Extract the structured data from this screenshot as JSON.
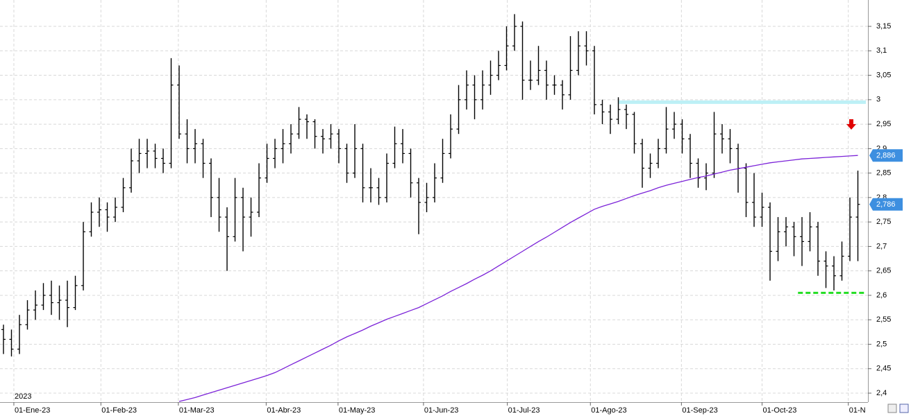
{
  "chart_data": {
    "type": "ohlc",
    "year_label": "2023",
    "ohlc": {
      "color": "#000000",
      "open": [
        2.53,
        2.51,
        2.49,
        2.54,
        2.57,
        2.58,
        2.6,
        2.585,
        2.59,
        2.575,
        2.62,
        2.73,
        2.77,
        2.775,
        2.76,
        2.78,
        2.82,
        2.875,
        2.89,
        2.895,
        2.88,
        2.87,
        3.03,
        2.93,
        2.9,
        2.91,
        2.87,
        2.8,
        2.76,
        2.72,
        2.8,
        2.76,
        2.77,
        2.84,
        2.88,
        2.9,
        2.91,
        2.93,
        2.96,
        2.955,
        2.925,
        2.92,
        2.93,
        2.9,
        2.85,
        2.9,
        2.82,
        2.82,
        2.8,
        2.87,
        2.91,
        2.89,
        2.83,
        2.79,
        2.8,
        2.84,
        2.89,
        2.94,
        3.0,
        3.03,
        3.0,
        3.03,
        3.05,
        3.07,
        3.11,
        3.15,
        3.04,
        3.04,
        3.06,
        3.03,
        3.03,
        3.01,
        3.06,
        3.11,
        3.1,
        2.99,
        2.975,
        2.96,
        2.98,
        2.97,
        2.91,
        2.86,
        2.87,
        2.9,
        2.94,
        2.95,
        2.92,
        2.87,
        2.84,
        2.85,
        2.93,
        2.92,
        2.9,
        2.86,
        2.79,
        2.76,
        2.78,
        2.69,
        2.73,
        2.74,
        2.72,
        2.71,
        2.74,
        2.67,
        2.66,
        2.64,
        2.68,
        2.76
      ],
      "high": [
        2.54,
        2.53,
        2.56,
        2.59,
        2.61,
        2.625,
        2.63,
        2.62,
        2.63,
        2.64,
        2.75,
        2.79,
        2.8,
        2.79,
        2.8,
        2.84,
        2.9,
        2.92,
        2.92,
        2.91,
        2.9,
        3.085,
        3.07,
        2.96,
        2.94,
        2.92,
        2.88,
        2.84,
        2.78,
        2.84,
        2.82,
        2.8,
        2.87,
        2.91,
        2.92,
        2.94,
        2.95,
        2.985,
        2.97,
        2.96,
        2.94,
        2.95,
        2.94,
        2.91,
        2.95,
        2.91,
        2.86,
        2.84,
        2.89,
        2.945,
        2.94,
        2.9,
        2.84,
        2.83,
        2.87,
        2.92,
        2.97,
        3.03,
        3.06,
        3.05,
        3.06,
        3.08,
        3.1,
        3.15,
        3.175,
        3.16,
        3.08,
        3.11,
        3.08,
        3.05,
        3.04,
        3.13,
        3.14,
        3.14,
        3.11,
        3.0,
        2.99,
        3.005,
        2.99,
        2.975,
        2.92,
        2.89,
        2.92,
        2.985,
        2.975,
        2.96,
        2.93,
        2.88,
        2.87,
        2.975,
        2.95,
        2.94,
        2.91,
        2.87,
        2.85,
        2.81,
        2.79,
        2.76,
        2.76,
        2.75,
        2.76,
        2.77,
        2.75,
        2.69,
        2.68,
        2.71,
        2.8,
        2.855
      ],
      "low": [
        2.48,
        2.475,
        2.48,
        2.53,
        2.55,
        2.57,
        2.56,
        2.55,
        2.535,
        2.57,
        2.61,
        2.72,
        2.74,
        2.73,
        2.75,
        2.77,
        2.81,
        2.85,
        2.86,
        2.86,
        2.85,
        2.86,
        2.92,
        2.87,
        2.87,
        2.84,
        2.76,
        2.73,
        2.65,
        2.71,
        2.69,
        2.72,
        2.76,
        2.83,
        2.86,
        2.87,
        2.89,
        2.92,
        2.92,
        2.9,
        2.89,
        2.9,
        2.87,
        2.83,
        2.84,
        2.79,
        2.79,
        2.785,
        2.79,
        2.86,
        2.87,
        2.8,
        2.725,
        2.77,
        2.79,
        2.83,
        2.88,
        2.93,
        2.98,
        2.96,
        2.98,
        3.01,
        3.04,
        3.06,
        3.1,
        3.0,
        3.02,
        3.03,
        3.0,
        3.01,
        2.98,
        3.0,
        3.05,
        3.07,
        2.97,
        2.95,
        2.93,
        2.95,
        2.94,
        2.89,
        2.82,
        2.84,
        2.86,
        2.89,
        2.92,
        2.89,
        2.84,
        2.82,
        2.815,
        2.84,
        2.89,
        2.87,
        2.81,
        2.76,
        2.74,
        2.74,
        2.63,
        2.67,
        2.7,
        2.68,
        2.66,
        2.69,
        2.64,
        2.615,
        2.61,
        2.63,
        2.67,
        2.67
      ],
      "close": [
        2.51,
        2.49,
        2.54,
        2.57,
        2.58,
        2.6,
        2.585,
        2.59,
        2.575,
        2.62,
        2.73,
        2.77,
        2.775,
        2.76,
        2.78,
        2.82,
        2.875,
        2.89,
        2.895,
        2.88,
        2.87,
        3.03,
        2.93,
        2.9,
        2.91,
        2.87,
        2.8,
        2.76,
        2.72,
        2.8,
        2.76,
        2.77,
        2.84,
        2.88,
        2.9,
        2.91,
        2.93,
        2.96,
        2.955,
        2.925,
        2.92,
        2.93,
        2.9,
        2.85,
        2.9,
        2.82,
        2.82,
        2.8,
        2.87,
        2.91,
        2.89,
        2.83,
        2.79,
        2.8,
        2.84,
        2.89,
        2.94,
        3.0,
        3.03,
        3.0,
        3.03,
        3.05,
        3.07,
        3.11,
        3.15,
        3.04,
        3.04,
        3.06,
        3.03,
        3.03,
        3.01,
        3.06,
        3.11,
        3.1,
        2.99,
        2.975,
        2.96,
        2.98,
        2.97,
        2.91,
        2.86,
        2.87,
        2.9,
        2.94,
        2.95,
        2.92,
        2.87,
        2.84,
        2.85,
        2.93,
        2.92,
        2.9,
        2.86,
        2.79,
        2.76,
        2.78,
        2.69,
        2.73,
        2.74,
        2.72,
        2.71,
        2.74,
        2.67,
        2.66,
        2.64,
        2.68,
        2.76,
        2.786
      ]
    },
    "ma": {
      "color": "#7b22d8",
      "values": [
        null,
        null,
        null,
        null,
        null,
        null,
        null,
        null,
        null,
        null,
        null,
        null,
        null,
        null,
        null,
        null,
        null,
        null,
        null,
        null,
        null,
        null,
        2.383,
        2.387,
        2.391,
        2.396,
        2.401,
        2.406,
        2.411,
        2.416,
        2.421,
        2.426,
        2.431,
        2.436,
        2.442,
        2.45,
        2.458,
        2.466,
        2.474,
        2.482,
        2.49,
        2.498,
        2.507,
        2.515,
        2.522,
        2.529,
        2.537,
        2.544,
        2.551,
        2.557,
        2.563,
        2.569,
        2.575,
        2.583,
        2.591,
        2.599,
        2.608,
        2.616,
        2.624,
        2.633,
        2.641,
        2.65,
        2.66,
        2.67,
        2.68,
        2.69,
        2.7,
        2.71,
        2.719,
        2.729,
        2.739,
        2.749,
        2.758,
        2.767,
        2.776,
        2.782,
        2.787,
        2.792,
        2.798,
        2.804,
        2.809,
        2.814,
        2.82,
        2.825,
        2.829,
        2.833,
        2.837,
        2.841,
        2.844,
        2.848,
        2.852,
        2.856,
        2.859,
        2.862,
        2.865,
        2.868,
        2.871,
        2.873,
        2.875,
        2.877,
        2.879,
        2.88,
        2.881,
        2.882,
        2.883,
        2.884,
        2.885,
        2.886
      ]
    },
    "hlines": [
      {
        "value": 2.995,
        "color": "#bdf0f6",
        "x": [
          77,
          108
        ]
      },
      {
        "value": 2.605,
        "color": "#22dd22",
        "x": [
          99.5,
          107.8
        ]
      }
    ],
    "price_labels": [
      {
        "value": 2.886,
        "label": "2,886",
        "color": "#3d8fe0"
      },
      {
        "value": 2.786,
        "label": "2,786",
        "color": "#3d8fe0"
      }
    ],
    "xlim": [
      -0.435,
      108.26
    ],
    "xticks": [
      {
        "value": 1.3,
        "label": "01-Ene-23"
      },
      {
        "value": 12.2,
        "label": "01-Feb-23"
      },
      {
        "value": 21.9,
        "label": "01-Mar-23"
      },
      {
        "value": 32.9,
        "label": "01-Abr-23"
      },
      {
        "value": 41.9,
        "label": "01-May-23"
      },
      {
        "value": 52.6,
        "label": "01-Jun-23"
      },
      {
        "value": 63.1,
        "label": "01-Jul-23"
      },
      {
        "value": 73.5,
        "label": "01-Ago-23"
      },
      {
        "value": 84.9,
        "label": "01-Sep-23"
      },
      {
        "value": 95,
        "label": "01-Oct-23"
      },
      {
        "value": 105.8,
        "label": "01-N"
      }
    ],
    "ylim": [
      2.3816,
      3.2039
    ],
    "yticks": [
      {
        "value": 2.4,
        "label": "2,4"
      },
      {
        "value": 2.45,
        "label": "2,45"
      },
      {
        "value": 2.5,
        "label": "2,5"
      },
      {
        "value": 2.55,
        "label": "2,55"
      },
      {
        "value": 2.6,
        "label": "2,6"
      },
      {
        "value": 2.65,
        "label": "2,65"
      },
      {
        "value": 2.7,
        "label": "2,7"
      },
      {
        "value": 2.75,
        "label": "2,75"
      },
      {
        "value": 2.8,
        "label": "2,8"
      },
      {
        "value": 2.85,
        "label": "2,85"
      },
      {
        "value": 2.9,
        "label": "2,9"
      },
      {
        "value": 2.95,
        "label": "2,95"
      },
      3,
      {
        "value": 3.05,
        "label": "3,05"
      },
      {
        "value": 3.1,
        "label": "3,1"
      },
      {
        "value": 3.15,
        "label": "3,15"
      }
    ],
    "grid": true
  }
}
